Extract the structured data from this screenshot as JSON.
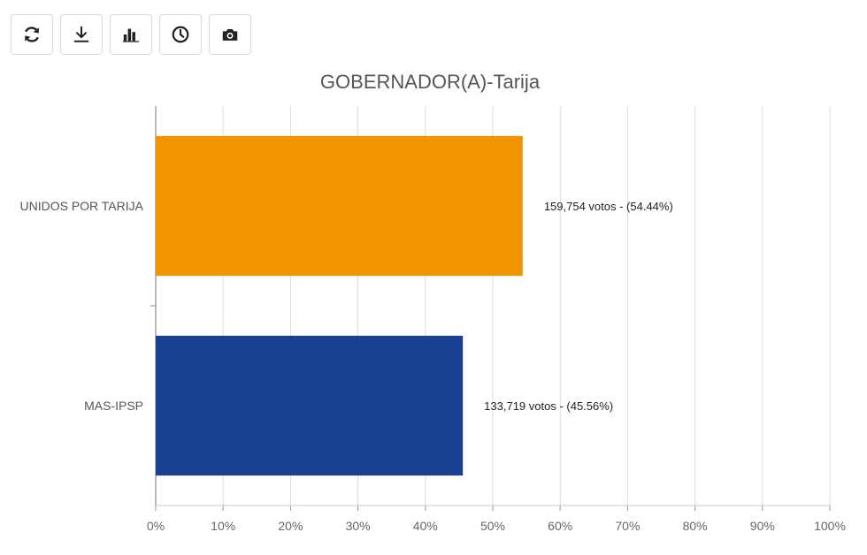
{
  "toolbar": {
    "buttons": [
      {
        "icon": "refresh-icon"
      },
      {
        "icon": "download-icon"
      },
      {
        "icon": "bar-chart-icon"
      },
      {
        "icon": "clock-icon"
      },
      {
        "icon": "camera-icon"
      }
    ]
  },
  "chart_data": {
    "type": "bar",
    "orientation": "horizontal",
    "title": "GOBERNADOR(A)-Tarija",
    "xlabel": "",
    "ylabel": "",
    "xlim": [
      0,
      100
    ],
    "grid": true,
    "x_ticks": [
      "0%",
      "10%",
      "20%",
      "30%",
      "40%",
      "50%",
      "60%",
      "70%",
      "80%",
      "90%",
      "100%"
    ],
    "categories": [
      "UNIDOS POR TARIJA",
      "MAS-IPSP"
    ],
    "values": [
      54.44,
      45.56
    ],
    "data_labels": [
      "159,754 votos - (54.44%)",
      "133,719 votos - (45.56%)"
    ],
    "colors": [
      "#F29400",
      "#1A4093"
    ]
  }
}
